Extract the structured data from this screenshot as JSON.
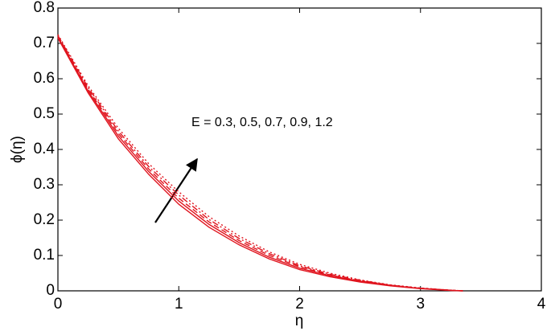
{
  "chart_data": {
    "type": "line",
    "x_label": "η",
    "y_label": "ϕ(η)",
    "annotation": "E = 0.3, 0.5, 0.7, 0.9, 1.2",
    "x": [
      0,
      0.25,
      0.5,
      0.75,
      1,
      1.25,
      1.5,
      1.75,
      2,
      2.25,
      2.5,
      2.75,
      3,
      3.25,
      3.35
    ],
    "series": [
      {
        "color": "#e0141e",
        "dash": "solid",
        "values": [
          0.715,
          0.56,
          0.43,
          0.33,
          0.245,
          0.18,
          0.13,
          0.09,
          0.06,
          0.04,
          0.025,
          0.014,
          0.006,
          0.001,
          0
        ]
      },
      {
        "color": "#e0141e",
        "dash": "solid",
        "values": [
          0.718,
          0.565,
          0.438,
          0.338,
          0.254,
          0.188,
          0.136,
          0.095,
          0.064,
          0.043,
          0.027,
          0.015,
          0.007,
          0.0013,
          0
        ]
      },
      {
        "color": "#e0141e",
        "dash": "dash",
        "values": [
          0.72,
          0.57,
          0.445,
          0.345,
          0.262,
          0.195,
          0.142,
          0.1,
          0.068,
          0.045,
          0.028,
          0.016,
          0.007,
          0.0015,
          0
        ]
      },
      {
        "color": "#e0141e",
        "dash": "dashdot",
        "values": [
          0.722,
          0.575,
          0.452,
          0.352,
          0.271,
          0.202,
          0.148,
          0.105,
          0.071,
          0.047,
          0.03,
          0.016,
          0.0075,
          0.0018,
          0
        ]
      },
      {
        "color": "#e0141e",
        "dash": "dot",
        "values": [
          0.725,
          0.58,
          0.46,
          0.36,
          0.28,
          0.21,
          0.155,
          0.11,
          0.075,
          0.05,
          0.031,
          0.017,
          0.008,
          0.002,
          0
        ]
      }
    ],
    "xlim": [
      0,
      4
    ],
    "xticks": [
      0,
      1,
      2,
      3,
      4
    ],
    "ylim": [
      0,
      0.8
    ],
    "yticks": [
      0,
      0.1,
      0.2,
      0.3,
      0.4,
      0.5,
      0.6,
      0.7,
      0.8
    ]
  }
}
